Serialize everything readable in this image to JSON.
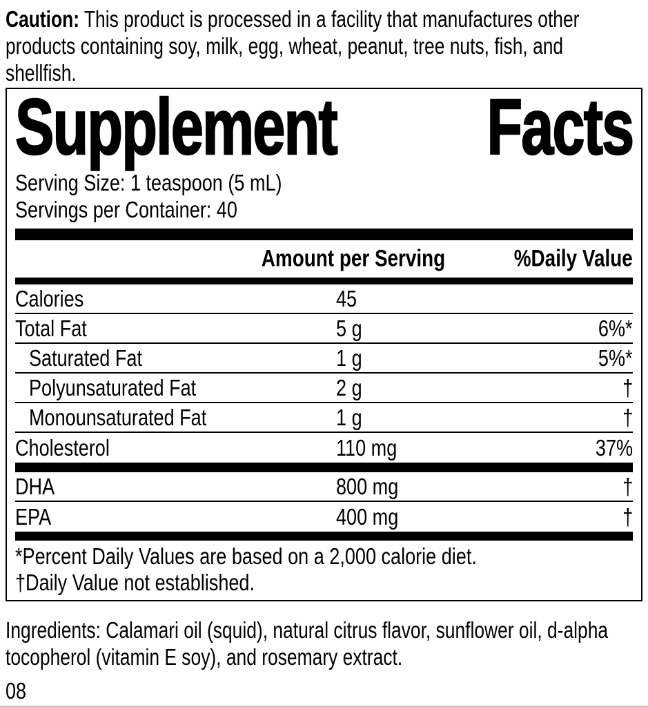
{
  "caution": {
    "label": "Caution:",
    "lines": [
      "This product is processed in a facility that manufactures other",
      "products containing soy, milk, egg, wheat, peanut, tree nuts, fish, and",
      "shellfish."
    ]
  },
  "panel": {
    "title_words": [
      "Supplement",
      "Facts"
    ],
    "serving_size": "Serving Size: 1 teaspoon (5 mL)",
    "servings_per_container": "Servings per Container: 40",
    "columns": {
      "amount": "Amount per Serving",
      "daily_value": "%Daily Value"
    },
    "rows": [
      {
        "name": "Calories",
        "amount": "45",
        "dv": ""
      },
      {
        "name": "Total Fat",
        "amount": "5 g",
        "dv": "6%*"
      },
      {
        "name": "Saturated Fat",
        "amount": "1 g",
        "dv": "5%*"
      },
      {
        "name": "Polyunsaturated Fat",
        "amount": "2 g",
        "dv": "†"
      },
      {
        "name": "Monounsaturated Fat",
        "amount": "1 g",
        "dv": "†"
      },
      {
        "name": "Cholesterol",
        "amount": "110 mg",
        "dv": "37%"
      }
    ],
    "omega_rows": [
      {
        "name": "DHA",
        "amount": "800 mg",
        "dv": "†"
      },
      {
        "name": "EPA",
        "amount": "400 mg",
        "dv": "†"
      }
    ],
    "footnotes": [
      "*Percent Daily Values are based on a 2,000 calorie diet.",
      "†Daily Value not established."
    ]
  },
  "ingredients": {
    "lines": [
      "Ingredients: Calamari oil (squid), natural citrus flavor, sunflower oil, d-alpha",
      "tocopherol (vitamin E soy), and rosemary extract."
    ]
  },
  "footer_code": "08",
  "colors": {
    "ink": "#000000",
    "paper": "#ffffff",
    "bottom_edge": "#c4c4c4"
  }
}
